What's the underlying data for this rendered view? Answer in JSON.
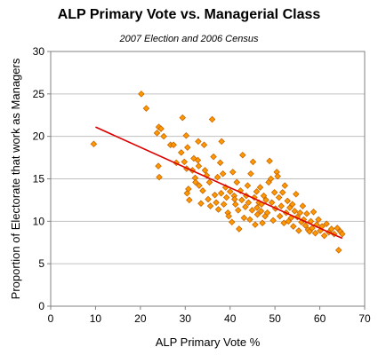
{
  "chart_data": {
    "type": "scatter",
    "title": "ALP Primary Vote vs. Managerial Class",
    "subtitle": "2007 Election and 2006 Census",
    "xlabel": "ALP Primary Vote %",
    "ylabel": "Proportion of Electorate that work as Managers",
    "xlim": [
      0,
      70
    ],
    "ylim": [
      0,
      30
    ],
    "xticks": [
      0,
      10,
      20,
      30,
      40,
      50,
      60,
      70
    ],
    "yticks": [
      0,
      5,
      10,
      15,
      20,
      25,
      30
    ],
    "grid": "horizontal",
    "marker_color": "#ff9900",
    "marker_edge": "#c86400",
    "trend_color": "#dd0000",
    "trendline": {
      "x": [
        10,
        65
      ],
      "y": [
        21.1,
        8.0
      ]
    },
    "points": [
      [
        9.6,
        19.1
      ],
      [
        20.2,
        25.0
      ],
      [
        21.3,
        23.3
      ],
      [
        23.7,
        20.4
      ],
      [
        24.1,
        21.1
      ],
      [
        24.6,
        20.9
      ],
      [
        24.0,
        16.5
      ],
      [
        24.2,
        15.2
      ],
      [
        25.2,
        20.0
      ],
      [
        26.7,
        19.0
      ],
      [
        27.4,
        19.0
      ],
      [
        28.0,
        16.9
      ],
      [
        29.1,
        18.1
      ],
      [
        29.4,
        22.2
      ],
      [
        29.8,
        17.0
      ],
      [
        30.2,
        20.1
      ],
      [
        30.3,
        16.2
      ],
      [
        30.5,
        18.7
      ],
      [
        30.4,
        13.3
      ],
      [
        30.7,
        13.8
      ],
      [
        30.9,
        12.5
      ],
      [
        31.6,
        16.0
      ],
      [
        31.9,
        17.4
      ],
      [
        32.2,
        15.1
      ],
      [
        32.3,
        14.6
      ],
      [
        32.8,
        17.2
      ],
      [
        32.9,
        19.4
      ],
      [
        33.1,
        14.2
      ],
      [
        33.5,
        12.1
      ],
      [
        33.9,
        13.6
      ],
      [
        34.2,
        19.0
      ],
      [
        34.4,
        16.0
      ],
      [
        34.8,
        15.4
      ],
      [
        35.1,
        12.6
      ],
      [
        35.6,
        11.8
      ],
      [
        35.4,
        14.6
      ],
      [
        36.0,
        22.0
      ],
      [
        36.3,
        17.6
      ],
      [
        36.6,
        13.1
      ],
      [
        36.9,
        12.2
      ],
      [
        37.2,
        15.2
      ],
      [
        37.4,
        11.4
      ],
      [
        37.8,
        16.9
      ],
      [
        38.0,
        13.3
      ],
      [
        38.1,
        19.4
      ],
      [
        38.6,
        12.0
      ],
      [
        39.0,
        14.0
      ],
      [
        39.2,
        12.8
      ],
      [
        39.5,
        11.0
      ],
      [
        39.7,
        10.6
      ],
      [
        40.0,
        13.5
      ],
      [
        40.4,
        9.9
      ],
      [
        40.6,
        15.8
      ],
      [
        40.9,
        13.0
      ],
      [
        41.2,
        12.0
      ],
      [
        41.5,
        14.6
      ],
      [
        41.8,
        11.3
      ],
      [
        42.0,
        9.1
      ],
      [
        42.3,
        13.6
      ],
      [
        42.6,
        12.5
      ],
      [
        42.8,
        17.8
      ],
      [
        43.1,
        10.4
      ],
      [
        43.4,
        11.7
      ],
      [
        43.6,
        13.0
      ],
      [
        43.9,
        14.2
      ],
      [
        44.1,
        12.2
      ],
      [
        44.4,
        10.2
      ],
      [
        44.6,
        15.6
      ],
      [
        44.9,
        11.3
      ],
      [
        45.1,
        17.0
      ],
      [
        45.4,
        12.8
      ],
      [
        45.6,
        9.6
      ],
      [
        45.9,
        13.5
      ],
      [
        46.1,
        10.8
      ],
      [
        46.4,
        12.2
      ],
      [
        46.7,
        14.0
      ],
      [
        46.9,
        11.2
      ],
      [
        47.2,
        9.8
      ],
      [
        47.5,
        13.0
      ],
      [
        47.8,
        10.6
      ],
      [
        48.0,
        12.5
      ],
      [
        48.3,
        11.0
      ],
      [
        48.6,
        14.6
      ],
      [
        48.8,
        17.1
      ],
      [
        49.1,
        15.0
      ],
      [
        49.3,
        12.2
      ],
      [
        49.6,
        10.1
      ],
      [
        49.9,
        13.4
      ],
      [
        50.1,
        11.5
      ],
      [
        50.4,
        15.8
      ],
      [
        50.6,
        15.3
      ],
      [
        50.9,
        12.8
      ],
      [
        51.1,
        10.6
      ],
      [
        51.4,
        11.8
      ],
      [
        51.7,
        13.4
      ],
      [
        52.0,
        9.8
      ],
      [
        52.2,
        14.2
      ],
      [
        52.5,
        11.0
      ],
      [
        52.8,
        12.4
      ],
      [
        53.0,
        10.0
      ],
      [
        53.3,
        11.6
      ],
      [
        53.6,
        10.4
      ],
      [
        53.9,
        12.0
      ],
      [
        54.1,
        9.4
      ],
      [
        54.4,
        11.2
      ],
      [
        54.7,
        13.2
      ],
      [
        55.0,
        10.5
      ],
      [
        55.3,
        8.9
      ],
      [
        55.6,
        11.0
      ],
      [
        55.9,
        9.9
      ],
      [
        56.2,
        11.8
      ],
      [
        56.4,
        10.2
      ],
      [
        56.8,
        9.5
      ],
      [
        57.1,
        10.9
      ],
      [
        57.4,
        9.0
      ],
      [
        57.7,
        8.8
      ],
      [
        58.0,
        10.0
      ],
      [
        58.3,
        9.2
      ],
      [
        58.6,
        11.1
      ],
      [
        59.0,
        8.6
      ],
      [
        59.3,
        9.6
      ],
      [
        59.7,
        10.2
      ],
      [
        60.1,
        8.9
      ],
      [
        60.5,
        9.4
      ],
      [
        61.0,
        8.3
      ],
      [
        61.5,
        9.7
      ],
      [
        62.0,
        8.7
      ],
      [
        62.6,
        9.1
      ],
      [
        63.2,
        8.5
      ],
      [
        63.9,
        9.2
      ],
      [
        64.2,
        6.6
      ],
      [
        64.6,
        8.8
      ],
      [
        65.0,
        8.5
      ],
      [
        33.0,
        16.5
      ],
      [
        38.4,
        15.6
      ],
      [
        41.0,
        12.6
      ],
      [
        46.0,
        11.6
      ],
      [
        47.0,
        12.0
      ]
    ]
  }
}
